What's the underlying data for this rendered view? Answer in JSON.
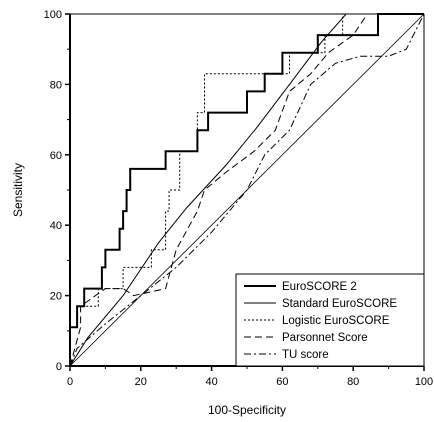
{
  "chart_data": {
    "type": "line",
    "title": "",
    "xlabel": "100-Specificity",
    "ylabel": "Sensitivity",
    "xlim": [
      0,
      100
    ],
    "ylim": [
      0,
      100
    ],
    "xticks": [
      "0",
      "20",
      "40",
      "60",
      "80",
      "100"
    ],
    "yticks": [
      "0",
      "20",
      "40",
      "60",
      "80",
      "100"
    ],
    "grid": false,
    "legend_position": "bottom-right",
    "series": [
      {
        "name": "EuroSCORE 2",
        "style": "solid-thick",
        "points": [
          [
            0,
            0
          ],
          [
            0,
            11
          ],
          [
            2,
            11
          ],
          [
            2,
            17
          ],
          [
            4,
            17
          ],
          [
            4,
            22
          ],
          [
            9,
            22
          ],
          [
            9,
            28
          ],
          [
            10,
            28
          ],
          [
            10,
            33
          ],
          [
            14,
            33
          ],
          [
            14,
            39
          ],
          [
            15,
            39
          ],
          [
            15,
            44
          ],
          [
            16,
            44
          ],
          [
            16,
            50
          ],
          [
            17,
            50
          ],
          [
            17,
            56
          ],
          [
            27,
            56
          ],
          [
            27,
            61
          ],
          [
            36,
            61
          ],
          [
            36,
            67
          ],
          [
            39,
            67
          ],
          [
            39,
            72
          ],
          [
            50,
            72
          ],
          [
            50,
            78
          ],
          [
            55,
            78
          ],
          [
            55,
            83
          ],
          [
            60,
            83
          ],
          [
            60,
            89
          ],
          [
            70,
            89
          ],
          [
            70,
            94
          ],
          [
            87,
            94
          ],
          [
            87,
            100
          ],
          [
            100,
            100
          ]
        ]
      },
      {
        "name": "Standard EuroSCORE",
        "style": "solid-thin",
        "points": [
          [
            0,
            0
          ],
          [
            5,
            8
          ],
          [
            15,
            20
          ],
          [
            25,
            35
          ],
          [
            33,
            45
          ],
          [
            44,
            57
          ],
          [
            53,
            68
          ],
          [
            62,
            80
          ],
          [
            71,
            92
          ],
          [
            78,
            100
          ],
          [
            100,
            100
          ]
        ]
      },
      {
        "name": "Logistic EuroSCORE",
        "style": "dotted",
        "points": [
          [
            0,
            0
          ],
          [
            0,
            11
          ],
          [
            2,
            11
          ],
          [
            2,
            17
          ],
          [
            8,
            17
          ],
          [
            8,
            22
          ],
          [
            15,
            22
          ],
          [
            15,
            28
          ],
          [
            23,
            28
          ],
          [
            23,
            33
          ],
          [
            27,
            33
          ],
          [
            27,
            44
          ],
          [
            28,
            44
          ],
          [
            28,
            50
          ],
          [
            31,
            50
          ],
          [
            31,
            61
          ],
          [
            36,
            61
          ],
          [
            36,
            72
          ],
          [
            38,
            72
          ],
          [
            38,
            83
          ],
          [
            62,
            83
          ],
          [
            62,
            89
          ],
          [
            72,
            89
          ],
          [
            72,
            94
          ],
          [
            77,
            94
          ],
          [
            77,
            100
          ],
          [
            100,
            100
          ]
        ]
      },
      {
        "name": "Parsonnet Score",
        "style": "dashed",
        "points": [
          [
            0,
            0
          ],
          [
            3,
            11
          ],
          [
            3,
            17
          ],
          [
            10,
            22
          ],
          [
            15,
            22
          ],
          [
            18,
            20
          ],
          [
            27,
            22
          ],
          [
            30,
            33
          ],
          [
            36,
            44
          ],
          [
            38,
            50
          ],
          [
            44,
            55
          ],
          [
            52,
            61
          ],
          [
            58,
            67
          ],
          [
            62,
            78
          ],
          [
            68,
            83
          ],
          [
            73,
            89
          ],
          [
            80,
            94
          ],
          [
            84,
            100
          ],
          [
            100,
            100
          ]
        ]
      },
      {
        "name": "TU score",
        "style": "dash-dot",
        "points": [
          [
            0,
            0
          ],
          [
            2,
            5
          ],
          [
            10,
            12
          ],
          [
            20,
            20
          ],
          [
            30,
            28
          ],
          [
            40,
            38
          ],
          [
            50,
            50
          ],
          [
            55,
            60
          ],
          [
            62,
            67
          ],
          [
            68,
            80
          ],
          [
            75,
            86
          ],
          [
            82,
            88
          ],
          [
            90,
            88
          ],
          [
            95,
            90
          ],
          [
            100,
            100
          ]
        ]
      }
    ]
  }
}
